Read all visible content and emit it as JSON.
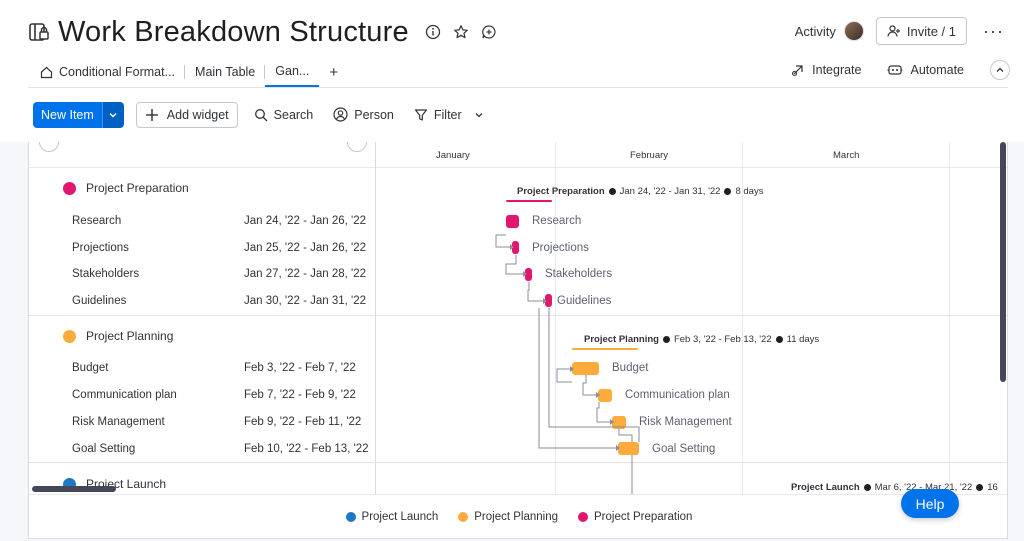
{
  "board": {
    "title": "Work Breakdown Structure"
  },
  "header": {
    "activity_label": "Activity",
    "invite_label": "Invite / 1",
    "more": "···"
  },
  "tabs": [
    {
      "label": "Conditional Format..."
    },
    {
      "label": "Main Table"
    },
    {
      "label": "Gan..."
    },
    {
      "label": "+"
    }
  ],
  "tabs_right": {
    "integrate": "Integrate",
    "automate": "Automate"
  },
  "toolbar": {
    "new_item": "New Item",
    "add_widget": "Add widget",
    "search": "Search",
    "person": "Person",
    "filter": "Filter"
  },
  "timeline": {
    "months": [
      "January",
      "February",
      "March"
    ]
  },
  "groups": [
    {
      "name": "Project Preparation",
      "color": "#e2166e",
      "summary": {
        "name": "Project Preparation",
        "dates": "Jan 24, '22 - Jan 31, '22",
        "duration": "8 days"
      },
      "items": [
        {
          "name": "Research",
          "dates": "Jan 24, '22 - Jan 26, '22"
        },
        {
          "name": "Projections",
          "dates": "Jan 25, '22 - Jan 26, '22"
        },
        {
          "name": "Stakeholders",
          "dates": "Jan 27, '22 - Jan 28, '22"
        },
        {
          "name": "Guidelines",
          "dates": "Jan 30, '22 - Jan 31, '22"
        }
      ]
    },
    {
      "name": "Project Planning",
      "color": "#fdab3d",
      "summary": {
        "name": "Project Planning",
        "dates": "Feb 3, '22 - Feb 13, '22",
        "duration": "11 days"
      },
      "items": [
        {
          "name": "Budget",
          "dates": "Feb 3, '22 - Feb 7, '22"
        },
        {
          "name": "Communication plan",
          "dates": "Feb 7, '22 - Feb 9, '22"
        },
        {
          "name": "Risk Management",
          "dates": "Feb 9, '22 - Feb 11, '22"
        },
        {
          "name": "Goal Setting",
          "dates": "Feb 10, '22 - Feb 13, '22"
        }
      ]
    },
    {
      "name": "Project Launch",
      "color": "#1f76c2",
      "summary": {
        "name": "Project Launch",
        "dates": "Mar 6, '22 - Mar 21, '22",
        "duration": "16"
      },
      "items": []
    }
  ],
  "legend": [
    {
      "label": "Project Launch",
      "color": "#1f76c2"
    },
    {
      "label": "Project Planning",
      "color": "#fdab3d"
    },
    {
      "label": "Project Preparation",
      "color": "#e2166e"
    }
  ],
  "help": {
    "label": "Help"
  },
  "colors": {
    "accent": "#0073ea"
  }
}
